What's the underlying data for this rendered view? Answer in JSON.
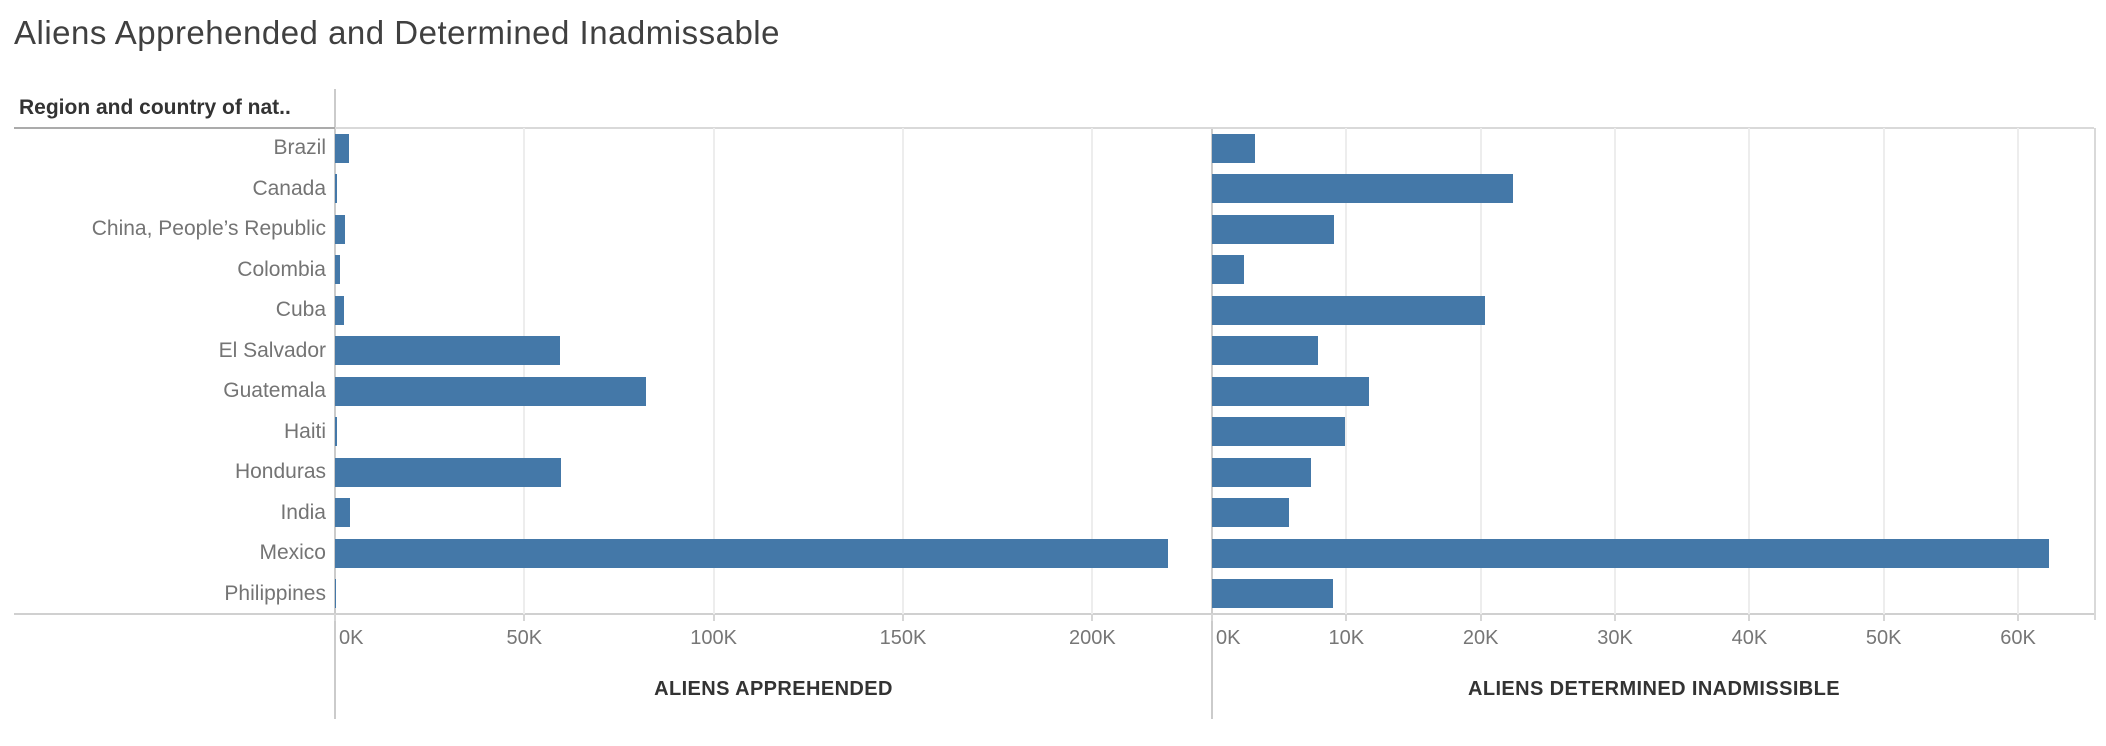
{
  "title": "Aliens Apprehended and Determined Inadmissable",
  "row_header": "Region and country of nat..",
  "colors": {
    "bar": "#4478a8",
    "gridline": "#ededed",
    "pane_border": "#d9d9d9",
    "header_rule": "#ababab",
    "axis_line": "#cbcbcb",
    "label_text": "#747474",
    "tick_text": "#767676",
    "title_text": "#404040",
    "axis_title_text": "#333333"
  },
  "chart_data": {
    "type": "bar",
    "orientation": "horizontal",
    "grid": "vertical-only",
    "categories": [
      "Brazil",
      "Canada",
      "China, People’s Republic",
      "Colombia",
      "Cuba",
      "El Salvador",
      "Guatemala",
      "Haiti",
      "Honduras",
      "India",
      "Mexico",
      "Philippines"
    ],
    "series": [
      {
        "name": "ALIENS APPREHENDED",
        "values": [
          3600,
          400,
          2600,
          1200,
          2400,
          59400,
          82100,
          600,
          59700,
          4000,
          220000,
          300
        ],
        "tick_labels": [
          "0K",
          "50K",
          "100K",
          "150K",
          "200K"
        ],
        "tick_values": [
          0,
          50000,
          100000,
          150000,
          200000
        ],
        "xmax": 231600
      },
      {
        "name": "ALIENS DETERMINED INADMISSIBLE",
        "values": [
          3200,
          22400,
          9100,
          2400,
          20300,
          7900,
          11700,
          9900,
          7400,
          5700,
          62300,
          9000
        ],
        "tick_labels": [
          "0K",
          "10K",
          "20K",
          "30K",
          "40K",
          "50K",
          "60K"
        ],
        "tick_values": [
          0,
          10000,
          20000,
          30000,
          40000,
          50000,
          60000
        ],
        "xmax": 65800
      }
    ]
  }
}
